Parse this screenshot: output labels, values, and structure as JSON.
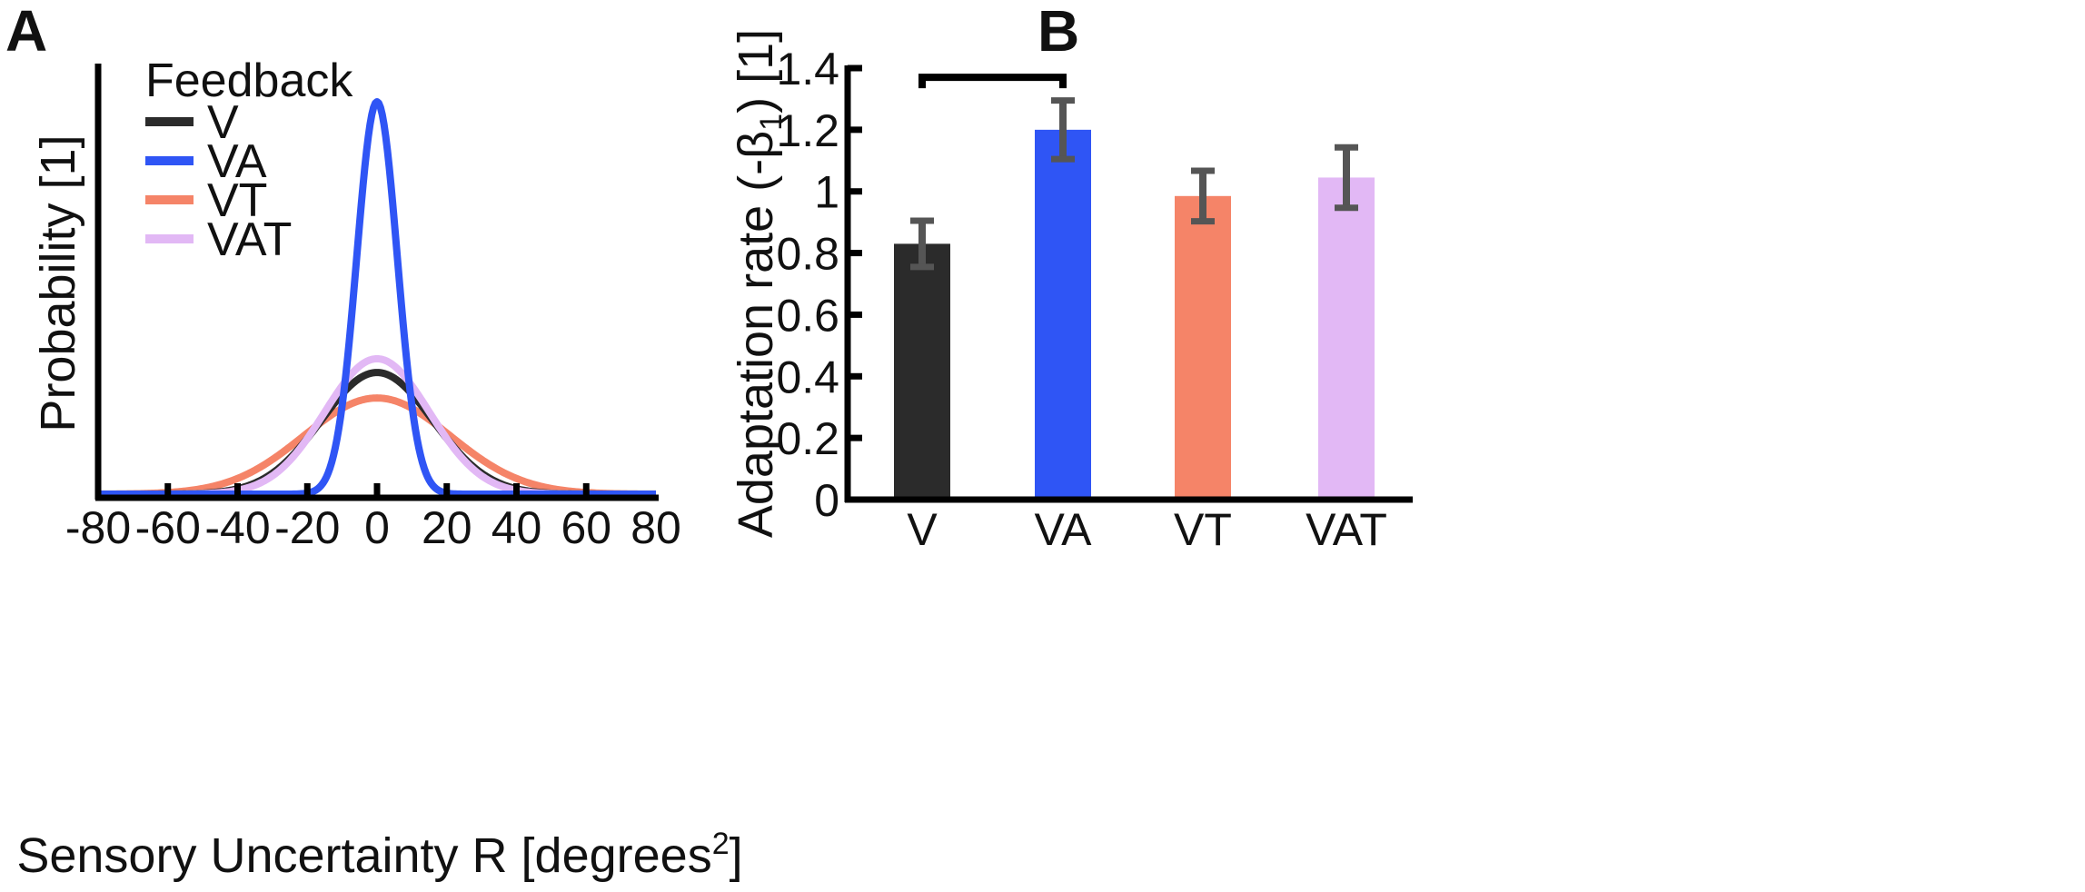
{
  "chart_data": [
    {
      "panel": "A",
      "type": "line",
      "title": "",
      "xlabel": "Sensory Uncertainty R [degrees",
      "xlabel_superscript": "2",
      "xlabel_suffix": "]",
      "ylabel": "Probability [1]",
      "xlim": [
        -80,
        80
      ],
      "xticks": [
        -80,
        -60,
        -40,
        -20,
        0,
        20,
        40,
        60,
        80
      ],
      "legend_title": "Feedback",
      "legend_position": "top-left",
      "series": [
        {
          "name": "V",
          "color": "#2b2b2b",
          "mean": 0,
          "sd": 16,
          "peak": 0.31
        },
        {
          "name": "VA",
          "color": "#2f55f5",
          "mean": 0,
          "sd": 5.8,
          "peak": 1.0
        },
        {
          "name": "VT",
          "color": "#f58468",
          "mean": 0,
          "sd": 21,
          "peak": 0.245
        },
        {
          "name": "VAT",
          "color": "#e2b8f5",
          "mean": 0,
          "sd": 15,
          "peak": 0.345
        }
      ]
    },
    {
      "panel": "B",
      "type": "bar",
      "title": "",
      "xlabel": "",
      "ylabel": "Adaptation rate (-β",
      "ylabel_subscript": "1",
      "ylabel_suffix": ") [1]",
      "ylim": [
        0,
        1.4
      ],
      "yticks": [
        0,
        0.2,
        0.4,
        0.6,
        0.8,
        1,
        1.2,
        1.4
      ],
      "ytick_labels": [
        "0",
        "0.2",
        "0.4",
        "0.6",
        "0.8",
        "1",
        "1.2",
        "1.4"
      ],
      "categories": [
        "V",
        "VA",
        "VT",
        "VAT"
      ],
      "values": [
        0.83,
        1.2,
        0.985,
        1.045
      ],
      "errors": [
        0.075,
        0.095,
        0.082,
        0.098
      ],
      "colors": [
        "#2b2b2b",
        "#2f55f5",
        "#f58468",
        "#e2b8f5"
      ],
      "significance": {
        "from": "V",
        "to": "VA",
        "y": 1.37
      }
    }
  ],
  "panels": {
    "a_label": "A",
    "b_label": "B"
  }
}
